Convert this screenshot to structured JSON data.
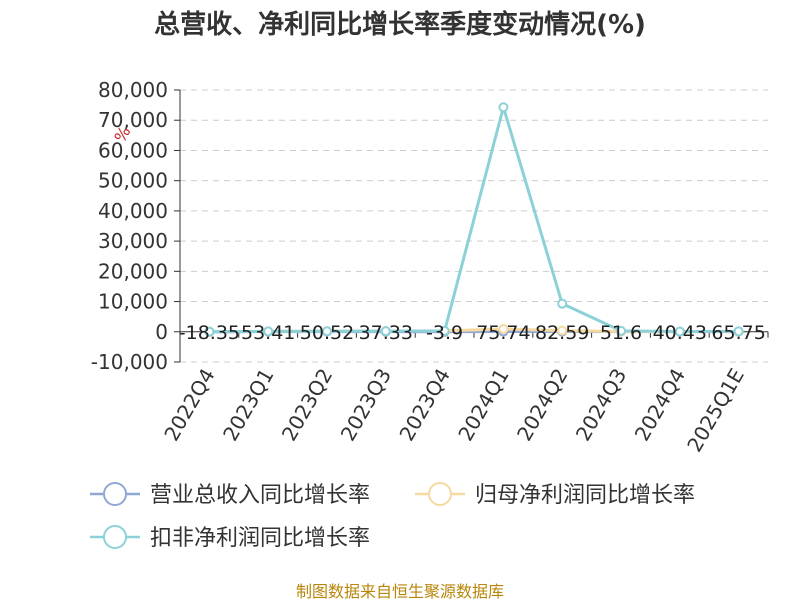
{
  "title": "总营收、净利同比增长率季度变动情况(%)",
  "source": "制图数据来自恒生聚源数据库",
  "chart_data": {
    "type": "line",
    "unit": "%",
    "categories": [
      "2022Q4",
      "2023Q1",
      "2023Q2",
      "2023Q3",
      "2023Q4",
      "2024Q1",
      "2024Q2",
      "2024Q3",
      "2024Q4",
      "2025Q1E"
    ],
    "ylim": [
      -10000,
      80000
    ],
    "yticks": [
      -10000,
      0,
      10000,
      20000,
      30000,
      40000,
      50000,
      60000,
      70000,
      80000
    ],
    "ytick_labels": [
      "-10,000",
      "0",
      "10,000",
      "20,000",
      "30,000",
      "40,000",
      "50,000",
      "60,000",
      "70,000",
      "80,000"
    ],
    "grid": true,
    "legend_position": "bottom",
    "series": [
      {
        "name": "营业总收入同比增长率",
        "color": "#8fa8d6",
        "values": [
          -18.35,
          53.41,
          50.52,
          37.33,
          -3.9,
          75.74,
          82.59,
          51.6,
          40.43,
          65.75
        ]
      },
      {
        "name": "归母净利润同比增长率",
        "color": "#f5d9a0",
        "values": [
          50,
          150,
          200,
          250,
          300,
          900,
          400,
          100,
          50,
          80
        ]
      },
      {
        "name": "扣非净利润同比增长率",
        "color": "#8dd1d8",
        "values": [
          60,
          120,
          180,
          200,
          280,
          74300,
          9300,
          300,
          100,
          150
        ]
      }
    ],
    "data_labels": [
      "-18.35",
      "53.41",
      "50.52",
      "37.33",
      "-3.9",
      "75.74",
      "82.59",
      "51.6",
      "40.43",
      "65.75"
    ]
  }
}
